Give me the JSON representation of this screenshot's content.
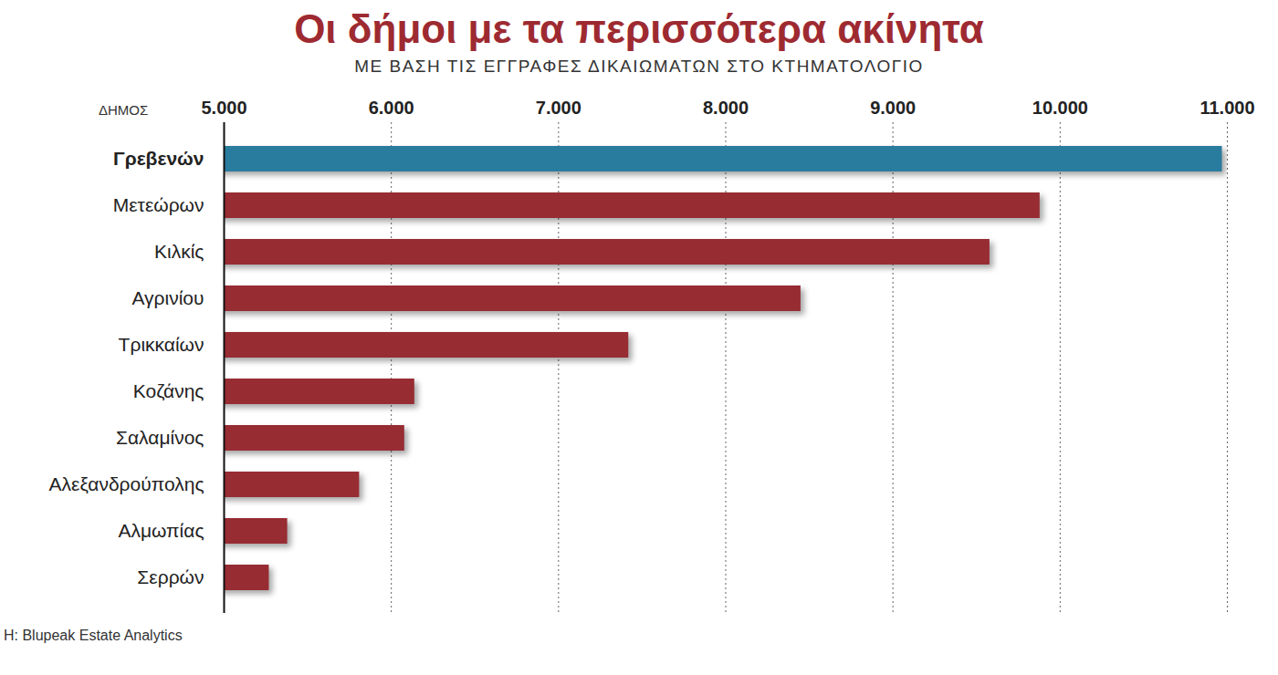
{
  "chart_data": {
    "type": "bar",
    "orientation": "horizontal",
    "title": "Οι δήμοι με τα περισσότερα ακίνητα",
    "subtitle": "ΜΕ ΒΑΣΗ ΤΙΣ ΕΓΓΡΑΦΕΣ ΔΙΚΑΙΩΜΑΤΩΝ ΣΤΟ ΚΤΗΜΑΤΟΛΟΓΙΟ",
    "y_label": "ΔΗΜΟΣ",
    "source": "Η: Blupeak Estate Analytics",
    "categories": [
      "Γρεβενών",
      "Μετεώρων",
      "Κιλκίς",
      "Αγρινίου",
      "Τρικκαίων",
      "Κοζάνης",
      "Σαλαμίνος",
      "Αλεξανδρούπολης",
      "Αλμωπίας",
      "Σερρών"
    ],
    "values": [
      10970,
      9880,
      9580,
      8450,
      7420,
      6140,
      6080,
      5810,
      5380,
      5270
    ],
    "colors": [
      "#2a7c9e",
      "#972c33",
      "#972c33",
      "#972c33",
      "#972c33",
      "#972c33",
      "#972c33",
      "#972c33",
      "#972c33",
      "#972c33"
    ],
    "xlim": [
      5000,
      11000
    ],
    "xticks": [
      {
        "value": 5000,
        "label": "5.000"
      },
      {
        "value": 6000,
        "label": "6.000"
      },
      {
        "value": 7000,
        "label": "7.000"
      },
      {
        "value": 8000,
        "label": "8.000"
      },
      {
        "value": 9000,
        "label": "9.000"
      },
      {
        "value": 10000,
        "label": "10.000"
      },
      {
        "value": 11000,
        "label": "11.000"
      }
    ],
    "grid": true
  }
}
